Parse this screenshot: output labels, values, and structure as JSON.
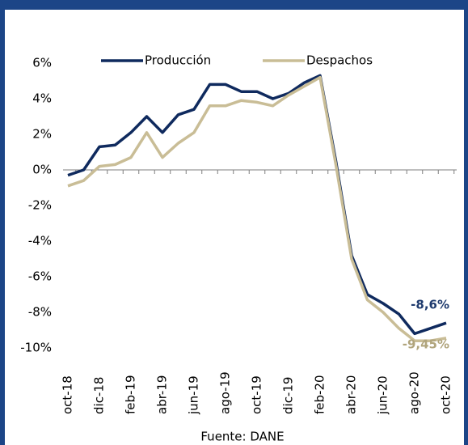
{
  "chart_data": {
    "type": "line",
    "categories": [
      "oct-18",
      null,
      "dic-18",
      null,
      "feb-19",
      null,
      "abr-19",
      null,
      "jun-19",
      null,
      "ago-19",
      null,
      "oct-19",
      null,
      "dic-19",
      null,
      "feb-20",
      null,
      "abr-20",
      null,
      "jun-20",
      null,
      "ago-20",
      null,
      "oct-20"
    ],
    "series": [
      {
        "name": "Producción",
        "color": "#0f2a5e",
        "values": [
          -0.3,
          0.0,
          1.3,
          1.4,
          2.1,
          3.0,
          2.1,
          3.1,
          3.4,
          4.8,
          4.8,
          4.4,
          4.4,
          4.0,
          4.3,
          4.9,
          5.3,
          0.5,
          -4.8,
          -7.0,
          -7.5,
          -8.1,
          -9.2,
          -8.9,
          -8.6
        ],
        "value_labels": [
          null,
          null,
          null,
          null,
          null,
          null,
          null,
          null,
          null,
          null,
          null,
          null,
          null,
          null,
          null,
          null,
          null,
          null,
          null,
          null,
          null,
          null,
          null,
          null,
          "-8,6%"
        ]
      },
      {
        "name": "Despachos",
        "color": "#c9bd96",
        "values": [
          -0.9,
          -0.6,
          0.2,
          0.3,
          0.7,
          2.1,
          0.7,
          1.5,
          2.1,
          3.6,
          3.6,
          3.9,
          3.8,
          3.6,
          4.2,
          4.7,
          5.2,
          0.3,
          -5.0,
          -7.3,
          -8.0,
          -8.9,
          -9.6,
          -9.6,
          -9.45
        ],
        "value_labels": [
          null,
          null,
          null,
          null,
          null,
          null,
          null,
          null,
          null,
          null,
          null,
          null,
          null,
          null,
          null,
          null,
          null,
          null,
          null,
          null,
          null,
          null,
          null,
          null,
          "-9,45%"
        ]
      }
    ],
    "ylim": [
      -10,
      6
    ],
    "yticks": [
      {
        "value": 6,
        "label": "6%"
      },
      {
        "value": 4,
        "label": "4%"
      },
      {
        "value": 2,
        "label": "2%"
      },
      {
        "value": 0,
        "label": "0%"
      },
      {
        "value": -2,
        "label": "-2%"
      },
      {
        "value": -4,
        "label": "-4%"
      },
      {
        "value": -6,
        "label": "-6%"
      },
      {
        "value": -8,
        "label": "-8%"
      },
      {
        "value": -10,
        "label": "-10%"
      }
    ],
    "source": "Fuente: DANE"
  }
}
